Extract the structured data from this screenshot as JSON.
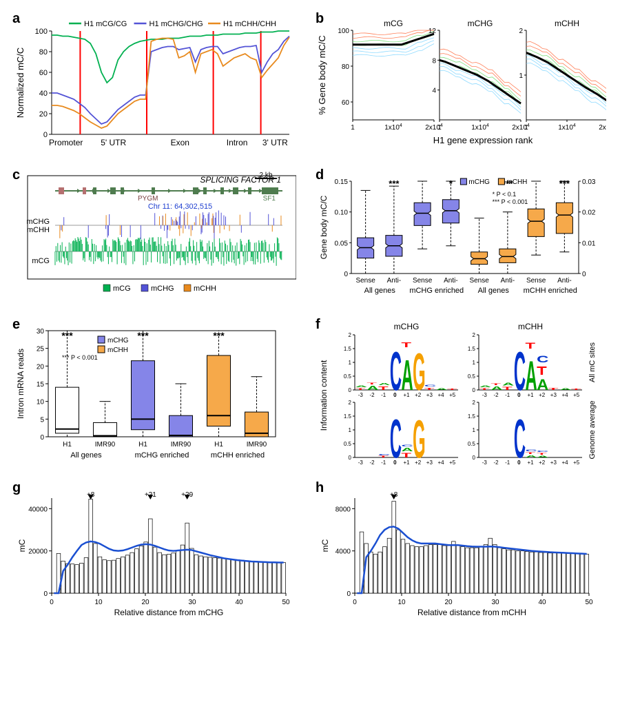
{
  "colors": {
    "mCG": "#00b050",
    "mCHG": "#5353d6",
    "mCHH": "#e88a1e",
    "accent_red": "#ff0000",
    "trend_black": "#000000",
    "contour1": "#7ad4ff",
    "contour2": "#6adb6a",
    "contour3": "#ff6a3c",
    "smooth_blue": "#1a4fd1",
    "box_fill_chg": "#8585e8",
    "box_fill_chh": "#f6a94a"
  },
  "panel_labels": {
    "a": "a",
    "b": "b",
    "c": "c",
    "d": "d",
    "e": "e",
    "f": "f",
    "g": "g",
    "h": "h"
  },
  "a": {
    "ylabel": "Normalized mC/C",
    "legend": [
      "H1 mCG/CG",
      "H1 mCHG/CHG",
      "H1 mCHH/CHH"
    ],
    "xcats": [
      "Promoter",
      "5' UTR",
      "Exon",
      "Intron",
      "3' UTR"
    ],
    "boundaries": [
      12,
      40,
      68,
      88
    ],
    "yticks": [
      0,
      20,
      40,
      60,
      80,
      100
    ],
    "series": {
      "mCG": [
        96,
        96,
        95,
        95,
        94,
        93,
        92,
        88,
        78,
        60,
        50,
        55,
        72,
        80,
        85,
        88,
        90,
        91,
        92,
        92,
        92,
        93,
        93,
        93,
        94,
        95,
        95,
        95,
        96,
        96,
        96,
        97,
        97,
        97,
        97,
        98,
        98,
        98,
        99,
        99,
        99,
        100,
        100,
        100
      ],
      "mCHG": [
        40,
        40,
        38,
        36,
        34,
        30,
        26,
        20,
        15,
        10,
        12,
        18,
        24,
        28,
        32,
        36,
        38,
        38,
        80,
        82,
        84,
        85,
        85,
        82,
        83,
        84,
        70,
        82,
        84,
        85,
        85,
        78,
        80,
        82,
        84,
        85,
        85,
        86,
        60,
        70,
        78,
        82,
        90,
        95
      ],
      "mCHH": [
        28,
        28,
        27,
        25,
        23,
        20,
        16,
        12,
        9,
        6,
        8,
        14,
        20,
        24,
        28,
        32,
        34,
        34,
        90,
        92,
        93,
        93,
        92,
        74,
        76,
        80,
        60,
        78,
        80,
        82,
        78,
        66,
        70,
        74,
        76,
        78,
        74,
        72,
        55,
        62,
        68,
        74,
        86,
        94
      ]
    }
  },
  "b": {
    "subtitles": [
      "mCG",
      "mCHG",
      "mCHH"
    ],
    "xlabel": "H1 gene expression   rank",
    "ylabel": "% Gene  body mC/C",
    "xticks": [
      "1",
      "1x10",
      "2x10"
    ],
    "xtick_exp": "4",
    "plots": [
      {
        "ymin": 50,
        "ymax": 100,
        "yticks": [
          60,
          80,
          100
        ],
        "trend": [
          92,
          92,
          92,
          92,
          92,
          92,
          92,
          92,
          92,
          92,
          93,
          94,
          95,
          96,
          97,
          98
        ]
      },
      {
        "ymin": 0,
        "ymax": 12,
        "yticks": [
          4,
          8,
          12
        ],
        "trend": [
          8,
          7.8,
          7.5,
          7.2,
          6.9,
          6.6,
          6.3,
          6.0,
          5.6,
          5.2,
          4.7,
          4.2,
          3.7,
          3.2,
          2.7,
          2.2
        ]
      },
      {
        "ymin": 0,
        "ymax": 2,
        "yticks": [
          1,
          2
        ],
        "trend": [
          1.5,
          1.45,
          1.4,
          1.34,
          1.28,
          1.2,
          1.12,
          1.04,
          0.96,
          0.88,
          0.8,
          0.72,
          0.65,
          0.58,
          0.5,
          0.42
        ]
      }
    ]
  },
  "c": {
    "gene": "SPLICING FACTOR 1",
    "sub": "PYGM",
    "sub2": "SF1",
    "loc": "Chr 11: 64,302,515",
    "scale": "2 kb",
    "legend": [
      "mCG",
      "mCHG",
      "mCHH"
    ],
    "tracks": [
      "mCHG",
      "mCHH",
      "mCG"
    ]
  },
  "d": {
    "ylabel": "Gene body mC/C",
    "right_ymax": 0.03,
    "right_yticks": [
      0,
      0.01,
      0.02,
      0.03
    ],
    "left_ymax": 0.15,
    "left_yticks": [
      0,
      0.05,
      0.1,
      0.15
    ],
    "legend": [
      "mCHG",
      "mCHH"
    ],
    "sig": [
      "***",
      "*",
      "***",
      "***"
    ],
    "sig_note": [
      "* P < 0.1",
      "*** P < 0.001"
    ],
    "groups": [
      "All genes",
      "mCHG enriched",
      "All genes",
      "mCHH enriched"
    ],
    "cats": [
      "Sense",
      "Anti-",
      "Sense",
      "Anti-",
      "Sense",
      "Anti-",
      "Sense",
      "Anti-"
    ],
    "boxes": [
      {
        "fill": "#8585e8",
        "q1": 0.025,
        "med": 0.042,
        "q3": 0.058,
        "wl": 0.0,
        "wu": 0.135,
        "axis": "L"
      },
      {
        "fill": "#8585e8",
        "q1": 0.028,
        "med": 0.045,
        "q3": 0.062,
        "wl": 0.0,
        "wu": 0.142,
        "axis": "L"
      },
      {
        "fill": "#8585e8",
        "q1": 0.078,
        "med": 0.098,
        "q3": 0.115,
        "wl": 0.04,
        "wu": 0.15,
        "axis": "L"
      },
      {
        "fill": "#8585e8",
        "q1": 0.082,
        "med": 0.102,
        "q3": 0.12,
        "wl": 0.045,
        "wu": 0.15,
        "axis": "L"
      },
      {
        "fill": "#f6a94a",
        "q1": 0.003,
        "med": 0.0048,
        "q3": 0.007,
        "wl": 0.0,
        "wu": 0.018,
        "axis": "R"
      },
      {
        "fill": "#f6a94a",
        "q1": 0.0035,
        "med": 0.0055,
        "q3": 0.008,
        "wl": 0.0,
        "wu": 0.02,
        "axis": "R"
      },
      {
        "fill": "#f6a94a",
        "q1": 0.012,
        "med": 0.017,
        "q3": 0.021,
        "wl": 0.006,
        "wu": 0.03,
        "axis": "R"
      },
      {
        "fill": "#f6a94a",
        "q1": 0.013,
        "med": 0.019,
        "q3": 0.023,
        "wl": 0.007,
        "wu": 0.03,
        "axis": "R"
      }
    ]
  },
  "e": {
    "ylabel": "Intron mRNA reads",
    "yticks": [
      0,
      5,
      10,
      15,
      20,
      25,
      30
    ],
    "sig": "***",
    "sig_note": "*** P < 0.001",
    "legend": [
      "mCHG",
      "mCHH"
    ],
    "groups": [
      "All genes",
      "mCHG enriched",
      "mCHH enriched"
    ],
    "cats": [
      "H1",
      "IMR90",
      "H1",
      "IMR90",
      "H1",
      "IMR90"
    ],
    "boxes": [
      {
        "fill": "#ffffff",
        "q1": 1,
        "med": 2.2,
        "q3": 14,
        "wl": 0,
        "wu": 30
      },
      {
        "fill": "#ffffff",
        "q1": 0,
        "med": 0.3,
        "q3": 4,
        "wl": 0,
        "wu": 10
      },
      {
        "fill": "#8585e8",
        "q1": 2,
        "med": 5,
        "q3": 21.5,
        "wl": 0,
        "wu": 30
      },
      {
        "fill": "#8585e8",
        "q1": 0,
        "med": 0.4,
        "q3": 6,
        "wl": 0,
        "wu": 15
      },
      {
        "fill": "#f6a94a",
        "q1": 3,
        "med": 6,
        "q3": 23,
        "wl": 0,
        "wu": 30
      },
      {
        "fill": "#f6a94a",
        "q1": 0,
        "med": 1,
        "q3": 7,
        "wl": 0,
        "wu": 17
      }
    ]
  },
  "f": {
    "titles": [
      "mCHG",
      "mCHH"
    ],
    "row_labels": [
      "All mC sites",
      "Genome average"
    ],
    "ylabel": "Information content",
    "positions": [
      -3,
      -2,
      -1,
      0,
      1,
      2,
      3,
      4,
      5
    ],
    "pos_labels": [
      "-3",
      "-2",
      "-1",
      "0",
      "+1",
      "+2",
      "+3",
      "+4",
      "+5"
    ],
    "logos": [
      [
        {
          "p": -3,
          "s": [
            [
              "T",
              0.1,
              "#ff0000"
            ],
            [
              "A",
              0.08,
              "#00a000"
            ]
          ]
        },
        {
          "p": -2,
          "s": [
            [
              "A",
              0.2,
              "#00a000"
            ],
            [
              "T",
              0.1,
              "#ff0000"
            ]
          ]
        },
        {
          "p": -1,
          "s": [
            [
              "T",
              0.18,
              "#ff0000"
            ],
            [
              "A",
              0.12,
              "#00a000"
            ]
          ]
        },
        {
          "p": 0,
          "s": [
            [
              "C",
              2.0,
              "#0033cc"
            ]
          ]
        },
        {
          "p": 1,
          "s": [
            [
              "A",
              1.55,
              "#00a000"
            ],
            [
              "T",
              0.25,
              "#ff0000"
            ]
          ]
        },
        {
          "p": 2,
          "s": [
            [
              "G",
              1.9,
              "#f5a000"
            ]
          ]
        },
        {
          "p": 3,
          "s": [
            [
              "T",
              0.12,
              "#ff0000"
            ],
            [
              "C",
              0.08,
              "#0033cc"
            ]
          ]
        },
        {
          "p": 4,
          "s": [
            [
              "A",
              0.08,
              "#00a000"
            ]
          ]
        },
        {
          "p": 5,
          "s": [
            [
              "T",
              0.06,
              "#ff0000"
            ]
          ]
        }
      ],
      [
        {
          "p": -3,
          "s": [
            [
              "T",
              0.1,
              "#ff0000"
            ],
            [
              "A",
              0.08,
              "#00a000"
            ]
          ]
        },
        {
          "p": -2,
          "s": [
            [
              "A",
              0.18,
              "#00a000"
            ],
            [
              "T",
              0.1,
              "#ff0000"
            ]
          ]
        },
        {
          "p": -1,
          "s": [
            [
              "T",
              0.16,
              "#ff0000"
            ],
            [
              "A",
              0.14,
              "#00a000"
            ]
          ]
        },
        {
          "p": 0,
          "s": [
            [
              "C",
              2.0,
              "#0033cc"
            ]
          ]
        },
        {
          "p": 1,
          "s": [
            [
              "A",
              1.5,
              "#00a000"
            ],
            [
              "T",
              0.3,
              "#ff0000"
            ]
          ]
        },
        {
          "p": 2,
          "s": [
            [
              "A",
              0.55,
              "#00a000"
            ],
            [
              "T",
              0.45,
              "#ff0000"
            ],
            [
              "C",
              0.35,
              "#0033cc"
            ]
          ]
        },
        {
          "p": 3,
          "s": [
            [
              "T",
              0.12,
              "#ff0000"
            ]
          ]
        },
        {
          "p": 4,
          "s": [
            [
              "A",
              0.08,
              "#00a000"
            ]
          ]
        },
        {
          "p": 5,
          "s": [
            [
              "T",
              0.06,
              "#ff0000"
            ]
          ]
        }
      ],
      [
        {
          "p": -3,
          "s": [
            [
              "",
              0,
              ""
            ]
          ]
        },
        {
          "p": -2,
          "s": [
            [
              "",
              0,
              ""
            ]
          ]
        },
        {
          "p": -1,
          "s": [
            [
              "T",
              0.08,
              "#ff0000"
            ],
            [
              "C",
              0.06,
              "#0033cc"
            ]
          ]
        },
        {
          "p": 0,
          "s": [
            [
              "C",
              2.0,
              "#0033cc"
            ]
          ]
        },
        {
          "p": 1,
          "s": [
            [
              "T",
              0.22,
              "#ff0000"
            ],
            [
              "A",
              0.18,
              "#00a000"
            ],
            [
              "C",
              0.1,
              "#0033cc"
            ]
          ]
        },
        {
          "p": 2,
          "s": [
            [
              "G",
              1.95,
              "#f5a000"
            ]
          ]
        },
        {
          "p": 3,
          "s": [
            [
              "",
              0,
              ""
            ]
          ]
        },
        {
          "p": 4,
          "s": [
            [
              "",
              0,
              ""
            ]
          ]
        },
        {
          "p": 5,
          "s": [
            [
              "",
              0,
              ""
            ]
          ]
        }
      ],
      [
        {
          "p": -3,
          "s": [
            [
              "",
              0,
              ""
            ]
          ]
        },
        {
          "p": -2,
          "s": [
            [
              "",
              0,
              ""
            ]
          ]
        },
        {
          "p": -1,
          "s": [
            [
              "",
              0,
              ""
            ]
          ]
        },
        {
          "p": 0,
          "s": [
            [
              "C",
              2.0,
              "#0033cc"
            ]
          ]
        },
        {
          "p": 1,
          "s": [
            [
              "A",
              0.12,
              "#00a000"
            ],
            [
              "T",
              0.1,
              "#ff0000"
            ],
            [
              "C",
              0.08,
              "#0033cc"
            ]
          ]
        },
        {
          "p": 2,
          "s": [
            [
              "A",
              0.1,
              "#00a000"
            ],
            [
              "T",
              0.1,
              "#ff0000"
            ],
            [
              "C",
              0.06,
              "#0033cc"
            ]
          ]
        },
        {
          "p": 3,
          "s": [
            [
              "",
              0,
              ""
            ]
          ]
        },
        {
          "p": 4,
          "s": [
            [
              "",
              0,
              ""
            ]
          ]
        },
        {
          "p": 5,
          "s": [
            [
              "",
              0,
              ""
            ]
          ]
        }
      ]
    ]
  },
  "g": {
    "ylabel": "mC",
    "xlabel": "Relative distance from mCHG",
    "yticks": [
      0,
      20000,
      40000
    ],
    "peak_labels": [
      {
        "x": 8,
        "t": "+8"
      },
      {
        "x": 21,
        "t": "+21"
      },
      {
        "x": 29,
        "t": "+29"
      }
    ],
    "bars": [
      0,
      18800,
      15200,
      14000,
      13800,
      13500,
      14200,
      16800,
      44500,
      23500,
      17200,
      15800,
      15400,
      15600,
      16400,
      17200,
      18000,
      19200,
      21000,
      22400,
      24200,
      35200,
      21800,
      19200,
      18200,
      18400,
      19000,
      20000,
      22800,
      33200,
      21200,
      18200,
      17600,
      17200,
      17000,
      16800,
      16600,
      16400,
      16200,
      16000,
      15800,
      15600,
      15400,
      15200,
      15100,
      15000,
      14900,
      14800,
      14700,
      14600,
      14500
    ],
    "smooth": [
      0,
      0,
      10500,
      13500,
      17000,
      20000,
      22800,
      24000,
      24500,
      24200,
      23400,
      22200,
      21000,
      20200,
      20000,
      20200,
      20800,
      21600,
      22400,
      23000,
      23200,
      23000,
      22400,
      21600,
      20800,
      20200,
      20000,
      20200,
      20400,
      20600,
      20400,
      19800,
      19200,
      18600,
      18000,
      17500,
      17000,
      16500,
      16200,
      15900,
      15600,
      15400,
      15200,
      15000,
      14900,
      14800,
      14700,
      14600,
      14600,
      14500,
      14500
    ]
  },
  "h": {
    "ylabel": "mC",
    "xlabel": "Relative distance from mCHH",
    "yticks": [
      0,
      4000,
      8000
    ],
    "peak_labels": [
      {
        "x": 8,
        "t": "+8"
      }
    ],
    "bars": [
      0,
      5800,
      4700,
      3900,
      3700,
      3900,
      4400,
      5200,
      8700,
      6000,
      5100,
      4700,
      4500,
      4400,
      4400,
      4500,
      4600,
      4600,
      4600,
      4500,
      4500,
      4900,
      4500,
      4400,
      4300,
      4300,
      4300,
      4400,
      4600,
      5200,
      4600,
      4300,
      4200,
      4100,
      4100,
      4000,
      4000,
      3950,
      3900,
      3900,
      3850,
      3850,
      3800,
      3800,
      3800,
      3780,
      3760,
      3740,
      3720,
      3700,
      3700
    ],
    "smooth": [
      0,
      0,
      3400,
      4000,
      4700,
      5500,
      6000,
      6250,
      6300,
      6100,
      5700,
      5300,
      5000,
      4800,
      4700,
      4700,
      4700,
      4700,
      4650,
      4600,
      4550,
      4550,
      4550,
      4500,
      4450,
      4420,
      4400,
      4400,
      4400,
      4420,
      4400,
      4350,
      4300,
      4250,
      4200,
      4150,
      4100,
      4050,
      4000,
      3970,
      3940,
      3910,
      3880,
      3860,
      3840,
      3820,
      3800,
      3780,
      3760,
      3740,
      3720
    ]
  }
}
